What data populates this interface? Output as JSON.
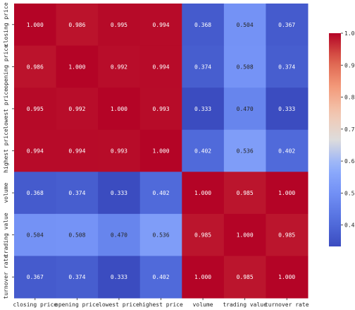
{
  "chart_data": {
    "type": "heatmap",
    "title": "",
    "labels": [
      "closing price",
      "opening price",
      "lowest price",
      "highest price",
      "volume",
      "trading value",
      "turnover rate"
    ],
    "values": [
      [
        1.0,
        0.986,
        0.995,
        0.994,
        0.368,
        0.504,
        0.367
      ],
      [
        0.986,
        1.0,
        0.992,
        0.994,
        0.374,
        0.508,
        0.374
      ],
      [
        0.995,
        0.992,
        1.0,
        0.993,
        0.333,
        0.47,
        0.333
      ],
      [
        0.994,
        0.994,
        0.993,
        1.0,
        0.402,
        0.536,
        0.402
      ],
      [
        0.368,
        0.374,
        0.333,
        0.402,
        1.0,
        0.985,
        1.0
      ],
      [
        0.504,
        0.508,
        0.47,
        0.536,
        0.985,
        1.0,
        0.985
      ],
      [
        0.367,
        0.374,
        0.333,
        0.402,
        1.0,
        0.985,
        1.0
      ]
    ],
    "value_format": "3 decimals",
    "colormap": "coolwarm",
    "low_color": "#3b4cc0",
    "mid_color": "#dddcdc",
    "high_color": "#b40426",
    "vmin": 0.333,
    "vmax": 1.0,
    "colorbar_ticks": [
      "0.4",
      "0.5",
      "0.6",
      "0.7",
      "0.8",
      "0.9",
      "1.0"
    ],
    "grid": false,
    "colorbar_placement": "right"
  }
}
